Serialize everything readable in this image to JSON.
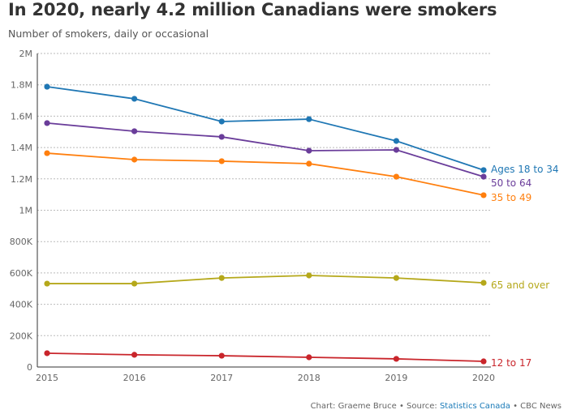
{
  "title": "In 2020, nearly 4.2 million Canadians were smokers",
  "subtitle": "Number of smokers, daily or occasional",
  "footer": {
    "credit": "Chart: Graeme Bruce • Source: ",
    "source": "Statistics Canada",
    "outlet": " • CBC News"
  },
  "chart_data": {
    "type": "line",
    "x": [
      2015,
      2016,
      2017,
      2018,
      2019,
      2020
    ],
    "xticks": [
      "2015",
      "2016",
      "2017",
      "2018",
      "2019",
      "2020"
    ],
    "ylim": [
      0,
      2000000
    ],
    "yticks": [
      {
        "v": 0,
        "l": "0"
      },
      {
        "v": 200000,
        "l": "200K"
      },
      {
        "v": 400000,
        "l": "400K"
      },
      {
        "v": 600000,
        "l": "600K"
      },
      {
        "v": 800000,
        "l": "800K"
      },
      {
        "v": 1000000,
        "l": "1M"
      },
      {
        "v": 1200000,
        "l": "1.2M"
      },
      {
        "v": 1400000,
        "l": "1.4M"
      },
      {
        "v": 1600000,
        "l": "1.6M"
      },
      {
        "v": 1800000,
        "l": "1.8M"
      },
      {
        "v": 2000000,
        "l": "2M"
      }
    ],
    "grid": true,
    "series": [
      {
        "name": "Ages 18 to 34",
        "color": "#1f77b4",
        "values": [
          1788000,
          1711000,
          1566000,
          1581000,
          1442000,
          1256000
        ]
      },
      {
        "name": "50 to 64",
        "color": "#6a3d9a",
        "values": [
          1556000,
          1504000,
          1468000,
          1380000,
          1385000,
          1214000
        ]
      },
      {
        "name": "35 to 49",
        "color": "#ff7f0e",
        "values": [
          1364000,
          1323000,
          1313000,
          1297000,
          1214000,
          1096000
        ]
      },
      {
        "name": "65 and over",
        "color": "#b5a81a",
        "values": [
          532000,
          532000,
          568000,
          584000,
          568000,
          537000
        ]
      },
      {
        "name": "12 to 17",
        "color": "#c9252b",
        "values": [
          88000,
          78000,
          72000,
          62000,
          52000,
          36000
        ]
      }
    ]
  }
}
